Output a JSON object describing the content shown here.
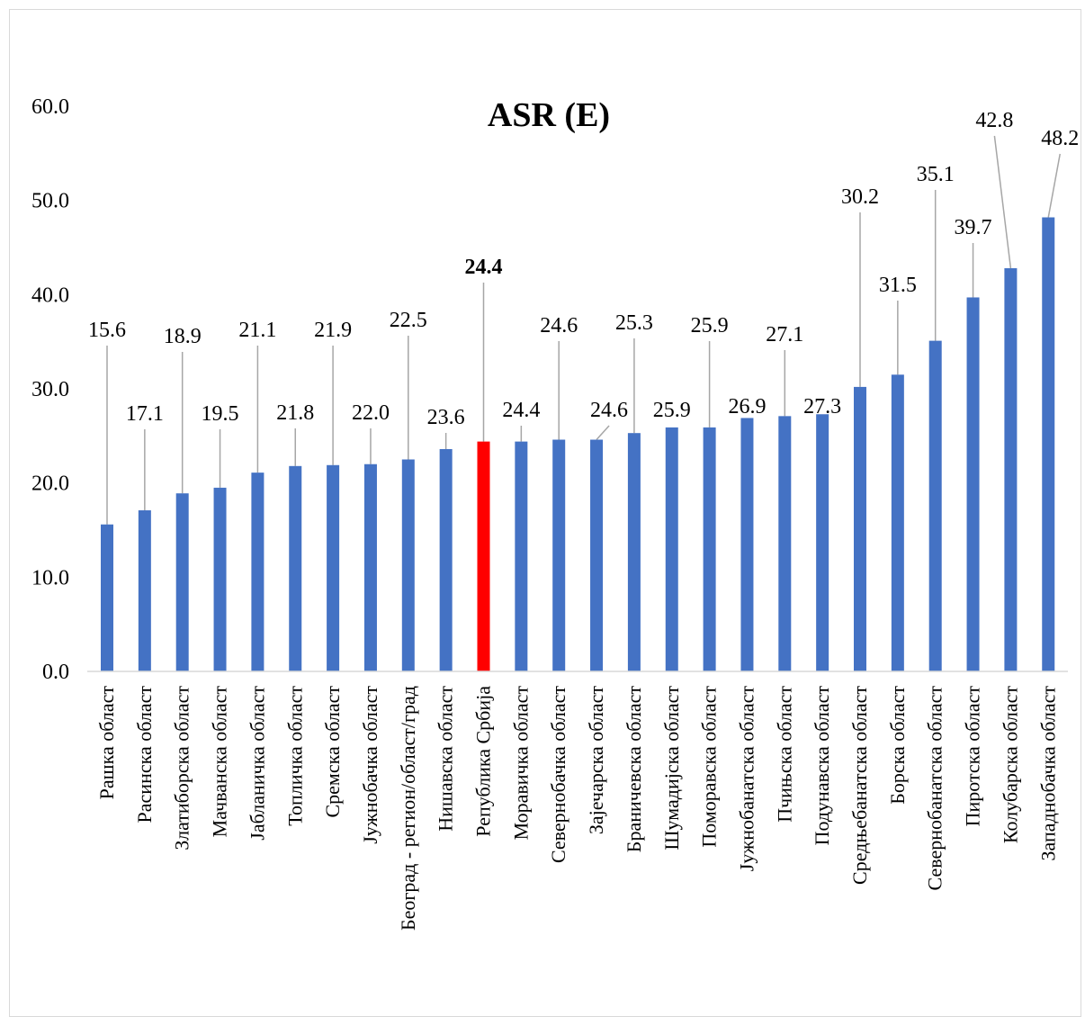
{
  "chart_data": {
    "type": "bar",
    "title": "ASR (E)",
    "xlabel": "",
    "ylabel": "",
    "ylim": [
      0,
      60
    ],
    "yticks": [
      "0.0",
      "10.0",
      "20.0",
      "30.0",
      "40.0",
      "50.0",
      "60.0"
    ],
    "grid": false,
    "legend": "none",
    "bar_color": "#4472C4",
    "highlight_color": "#FF0000",
    "highlight_category": "Република Србија",
    "categories": [
      "Рашка област",
      "Расинска област",
      "Златиборска област",
      "Мачванска област",
      "Јабланичка област",
      "Топличка област",
      "Сремска област",
      "Јужнобачка област",
      "Београд - регион/област/град",
      "Нишавска област",
      "Република Србија",
      "Моравичка област",
      "Севернобачка област",
      "Зајечарска област",
      "Браничевска област",
      "Шумадијска област",
      "Поморавска област",
      "Јужнобанатска област",
      "Пчињска област",
      "Подунавска област",
      "Средњебанатска област",
      "Борска област",
      "Севернобанатска област",
      "Пиротска област",
      "Колубарска област",
      "Западнобачка област"
    ],
    "values": [
      15.6,
      17.1,
      18.9,
      19.5,
      21.1,
      21.8,
      21.9,
      22.0,
      22.5,
      23.6,
      24.4,
      24.4,
      24.6,
      24.6,
      25.3,
      25.9,
      25.9,
      26.9,
      27.1,
      27.3,
      30.2,
      31.5,
      35.1,
      39.7,
      42.8,
      48.2
    ],
    "data_labels": [
      "15.6",
      "17.1",
      "18.9",
      "19.5",
      "21.1",
      "21.8",
      "21.9",
      "22.0",
      "22.5",
      "23.6",
      "24.4",
      "24.4",
      "24.6",
      "24.6",
      "25.3",
      "25.9",
      "25.9",
      "26.9",
      "27.1",
      "27.3",
      "30.2",
      "31.5",
      "35.1",
      "39.7",
      "42.8",
      "48.2"
    ]
  }
}
